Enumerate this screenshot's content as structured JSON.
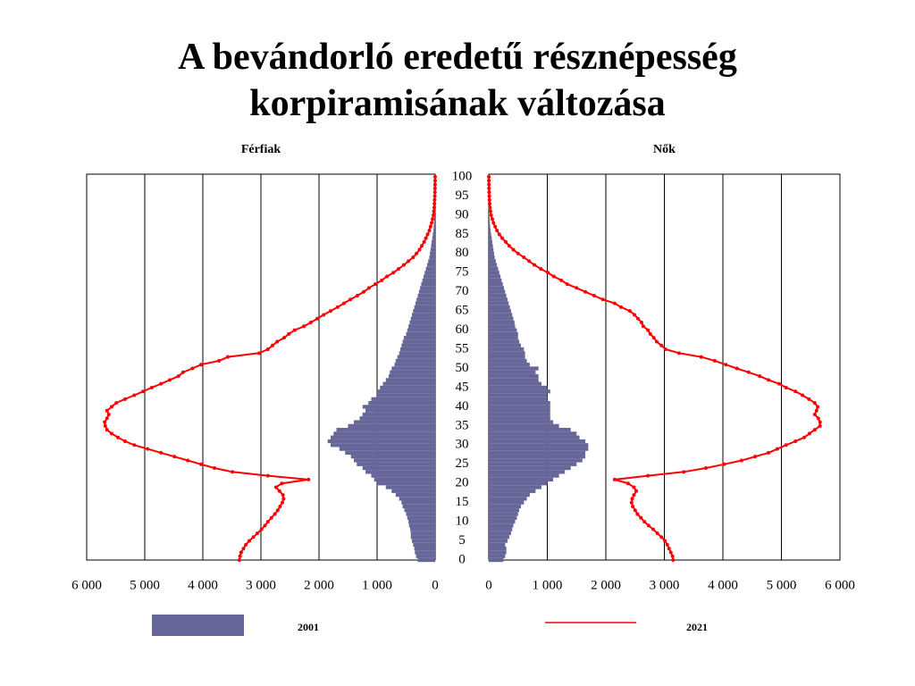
{
  "chart_data": {
    "type": "pyramid",
    "title": "A bevándorló eredetű résznépesség\nkorpiramisának változása",
    "y": [
      0,
      1,
      2,
      3,
      4,
      5,
      6,
      7,
      8,
      9,
      10,
      11,
      12,
      13,
      14,
      15,
      16,
      17,
      18,
      19,
      20,
      21,
      22,
      23,
      24,
      25,
      26,
      27,
      28,
      29,
      30,
      31,
      32,
      33,
      34,
      35,
      36,
      37,
      38,
      39,
      40,
      41,
      42,
      43,
      44,
      45,
      46,
      47,
      48,
      49,
      50,
      51,
      52,
      53,
      54,
      55,
      56,
      57,
      58,
      59,
      60,
      61,
      62,
      63,
      64,
      65,
      66,
      67,
      68,
      69,
      70,
      71,
      72,
      73,
      74,
      75,
      76,
      77,
      78,
      79,
      80,
      81,
      82,
      83,
      84,
      85,
      86,
      87,
      88,
      89,
      90,
      91,
      92,
      93,
      94,
      95,
      96,
      97,
      98,
      99,
      100
    ],
    "ylim": [
      0,
      100
    ],
    "yticks": [
      0,
      5,
      10,
      15,
      20,
      25,
      30,
      35,
      40,
      45,
      50,
      55,
      60,
      65,
      70,
      75,
      80,
      85,
      90,
      95,
      100
    ],
    "panels": [
      {
        "title": "Férfiak",
        "reversed": true,
        "xlim": [
          0,
          6000
        ],
        "xticks": [
          0,
          {
            "value": 1000,
            "label": "1 000"
          },
          {
            "value": 2000,
            "label": "2 000"
          },
          {
            "value": 3000,
            "label": "3 000"
          },
          {
            "value": 4000,
            "label": "4 000"
          },
          {
            "value": 5000,
            "label": "5 000"
          },
          {
            "value": 6000,
            "label": "6 000"
          }
        ]
      },
      {
        "title": "Nők",
        "reversed": false,
        "xlim": [
          0,
          6000
        ],
        "xticks": [
          0,
          {
            "value": 1000,
            "label": "1 000"
          },
          {
            "value": 2000,
            "label": "2 000"
          },
          {
            "value": 3000,
            "label": "3 000"
          },
          {
            "value": 4000,
            "label": "4 000"
          },
          {
            "value": 5000,
            "label": "5 000"
          },
          {
            "value": 6000,
            "label": "6 000"
          }
        ]
      }
    ],
    "grid": true,
    "series": [
      {
        "name": "2001",
        "type": "bar",
        "color": "#666699",
        "values": [
          [
            300,
            330,
            350,
            360,
            380,
            400,
            420,
            420,
            430,
            450,
            460,
            480,
            500,
            530,
            560,
            580,
            620,
            680,
            750,
            850,
            1000,
            1050,
            1100,
            1200,
            1250,
            1350,
            1400,
            1450,
            1550,
            1650,
            1800,
            1850,
            1800,
            1750,
            1700,
            1500,
            1400,
            1300,
            1250,
            1200,
            1250,
            1150,
            1100,
            1000,
            1000,
            950,
            900,
            850,
            800,
            780,
            750,
            700,
            680,
            650,
            620,
            600,
            580,
            560,
            540,
            500,
            480,
            460,
            440,
            420,
            400,
            380,
            360,
            340,
            320,
            300,
            280,
            260,
            240,
            220,
            200,
            180,
            160,
            140,
            120,
            100,
            90,
            80,
            70,
            60,
            50,
            40,
            30,
            25,
            20,
            15,
            10,
            8,
            6,
            5,
            4,
            3,
            2,
            2,
            1,
            1,
            1
          ],
          [
            250,
            280,
            300,
            300,
            280,
            320,
            350,
            380,
            400,
            420,
            450,
            480,
            500,
            520,
            550,
            600,
            650,
            700,
            800,
            900,
            1000,
            1100,
            1200,
            1300,
            1400,
            1500,
            1600,
            1650,
            1650,
            1700,
            1700,
            1650,
            1550,
            1500,
            1400,
            1200,
            1100,
            1050,
            1050,
            1050,
            1050,
            1050,
            1000,
            1000,
            1050,
            1000,
            900,
            850,
            850,
            800,
            850,
            700,
            650,
            620,
            620,
            600,
            550,
            520,
            500,
            500,
            480,
            450,
            440,
            420,
            400,
            380,
            360,
            340,
            320,
            300,
            280,
            260,
            240,
            220,
            200,
            180,
            160,
            140,
            120,
            100,
            90,
            80,
            70,
            60,
            50,
            40,
            30,
            25,
            20,
            15,
            10,
            8,
            6,
            5,
            4,
            3,
            2,
            2,
            1,
            1,
            1
          ]
        ]
      },
      {
        "name": "2021",
        "type": "line",
        "color": "#ff0000",
        "values": [
          [
            3370,
            3360,
            3340,
            3300,
            3260,
            3200,
            3130,
            3060,
            2990,
            2930,
            2880,
            2820,
            2760,
            2710,
            2670,
            2630,
            2610,
            2620,
            2680,
            2740,
            2640,
            2180,
            2880,
            3490,
            3800,
            4030,
            4260,
            4490,
            4720,
            4950,
            5180,
            5340,
            5460,
            5570,
            5650,
            5680,
            5690,
            5650,
            5620,
            5650,
            5570,
            5490,
            5340,
            5180,
            5030,
            4880,
            4720,
            4570,
            4420,
            4340,
            4180,
            4030,
            3720,
            3570,
            3030,
            2880,
            2800,
            2720,
            2600,
            2520,
            2420,
            2260,
            2140,
            2030,
            1920,
            1800,
            1680,
            1570,
            1460,
            1340,
            1230,
            1140,
            1030,
            920,
            830,
            720,
            630,
            540,
            460,
            380,
            320,
            270,
            230,
            190,
            160,
            130,
            100,
            80,
            60,
            45,
            30,
            22,
            16,
            12,
            9,
            6,
            4,
            3,
            2,
            1,
            1
          ],
          [
            3150,
            3140,
            3110,
            3080,
            3050,
            3010,
            2950,
            2880,
            2810,
            2730,
            2660,
            2600,
            2540,
            2500,
            2460,
            2440,
            2450,
            2480,
            2520,
            2480,
            2380,
            2150,
            2720,
            3330,
            3710,
            4020,
            4320,
            4550,
            4780,
            4930,
            5080,
            5240,
            5390,
            5480,
            5570,
            5660,
            5660,
            5630,
            5570,
            5600,
            5620,
            5570,
            5470,
            5360,
            5240,
            5080,
            4960,
            4780,
            4630,
            4440,
            4240,
            4050,
            3860,
            3630,
            3250,
            3020,
            2950,
            2870,
            2820,
            2760,
            2720,
            2640,
            2610,
            2550,
            2490,
            2410,
            2260,
            2150,
            1950,
            1800,
            1650,
            1500,
            1340,
            1240,
            1110,
            1010,
            890,
            780,
            690,
            600,
            500,
            420,
            350,
            290,
            230,
            180,
            140,
            110,
            80,
            60,
            40,
            30,
            22,
            16,
            12,
            9,
            6,
            4,
            3,
            2,
            1
          ]
        ]
      }
    ]
  }
}
